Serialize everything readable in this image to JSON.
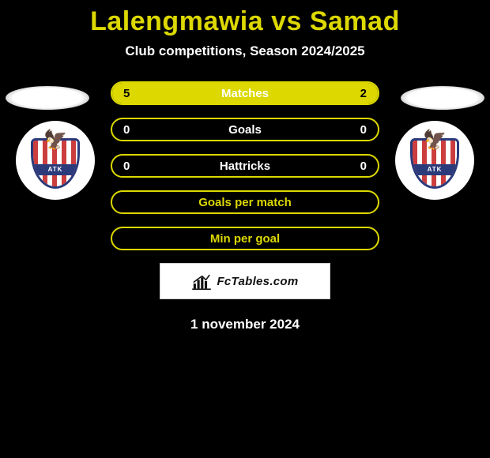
{
  "header": {
    "title": "Lalengmawia vs Samad",
    "subtitle": "Club competitions, Season 2024/2025"
  },
  "teams": {
    "left": {
      "badge_text": "ATK"
    },
    "right": {
      "badge_text": "ATK"
    }
  },
  "bars": [
    {
      "label": "Matches",
      "left": "5",
      "right": "2",
      "left_pct": 71,
      "right_pct": 29,
      "has_values": true
    },
    {
      "label": "Goals",
      "left": "0",
      "right": "0",
      "left_pct": 0,
      "right_pct": 0,
      "has_values": true
    },
    {
      "label": "Hattricks",
      "left": "0",
      "right": "0",
      "left_pct": 0,
      "right_pct": 0,
      "has_values": true
    },
    {
      "label": "Goals per match",
      "left": "",
      "right": "",
      "left_pct": 0,
      "right_pct": 0,
      "has_values": false
    },
    {
      "label": "Min per goal",
      "left": "",
      "right": "",
      "left_pct": 0,
      "right_pct": 0,
      "has_values": false
    }
  ],
  "brand": {
    "text": "FcTables.com"
  },
  "date": {
    "text": "1 november 2024"
  },
  "style": {
    "accent": "#dcd800",
    "bg": "#000000",
    "bar_border": "#dcd800",
    "bar_fill": "#dcd800"
  }
}
